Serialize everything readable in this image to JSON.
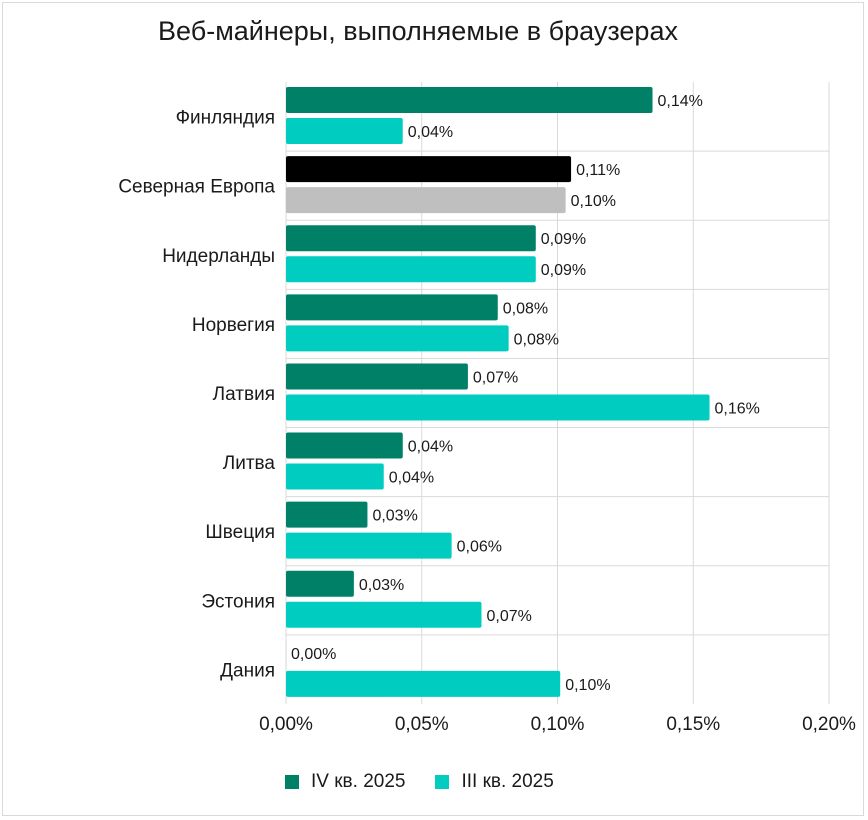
{
  "chart_data": {
    "type": "bar",
    "orientation": "horizontal",
    "title": "Веб-майнеры, выполняемые в браузерах",
    "categories": [
      "Финляндия",
      "Северная Европа",
      "Нидерланды",
      "Норвегия",
      "Латвия",
      "Литва",
      "Швеция",
      "Эстония",
      "Дания"
    ],
    "series": [
      {
        "name": "IV кв. 2025",
        "color": "#008066",
        "values": [
          0.135,
          0.105,
          0.092,
          0.078,
          0.067,
          0.043,
          0.03,
          0.025,
          0.0
        ],
        "labels": [
          "0,14%",
          "0,11%",
          "0,09%",
          "0,08%",
          "0,07%",
          "0,04%",
          "0,03%",
          "0,03%",
          "0,00%"
        ]
      },
      {
        "name": "III кв. 2025",
        "color": "#00ccbf",
        "values": [
          0.043,
          0.103,
          0.092,
          0.082,
          0.156,
          0.036,
          0.061,
          0.072,
          0.101
        ],
        "labels": [
          "0,04%",
          "0,10%",
          "0,09%",
          "0,08%",
          "0,16%",
          "0,04%",
          "0,06%",
          "0,07%",
          "0,10%"
        ]
      }
    ],
    "highlight": {
      "category": "Северная Европа",
      "series_colors": [
        "#000000",
        "#bfbfbf"
      ]
    },
    "xlim": [
      0,
      0.2
    ],
    "x_ticks": [
      0,
      0.05,
      0.1,
      0.15,
      0.2
    ],
    "x_tick_labels": [
      "0,00%",
      "0,05%",
      "0,10%",
      "0,15%",
      "0,20%"
    ],
    "grid": true,
    "legend_position": "bottom"
  },
  "legend": {
    "items": [
      {
        "label": "IV кв. 2025",
        "color": "#008066"
      },
      {
        "label": "III кв. 2025",
        "color": "#00ccbf"
      }
    ]
  }
}
